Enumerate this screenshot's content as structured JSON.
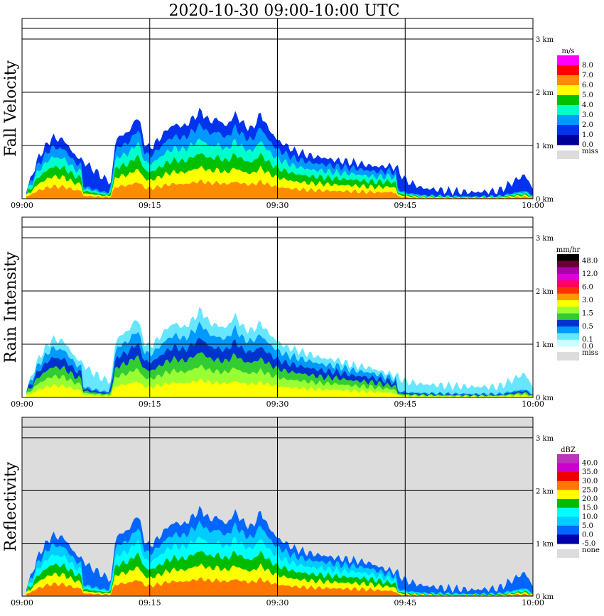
{
  "title": "2020-10-30   09:00-10:00 UTC",
  "x_ticks": [
    "09:00",
    "09:15",
    "09:30",
    "09:45",
    "10:00"
  ],
  "y_ticks": [
    "0 km",
    "1 km",
    "2 km",
    "3 km"
  ],
  "chart_data": [
    {
      "type": "heatmap",
      "title": "Fall Velocity",
      "ylabel": "Fall Velocity",
      "unit": "m/s",
      "x_range": [
        "09:00",
        "10:00"
      ],
      "y_range_km": [
        0,
        3.2
      ],
      "grid": true,
      "background": "#ffffff",
      "legend_position": "right",
      "legend": [
        {
          "label": "8.0",
          "color": "#ff00ff"
        },
        {
          "label": "7.0",
          "color": "#ff0000"
        },
        {
          "label": "6.0",
          "color": "#ff8c00"
        },
        {
          "label": "5.0",
          "color": "#ffff00"
        },
        {
          "label": "4.0",
          "color": "#00c000"
        },
        {
          "label": "3.0",
          "color": "#00ffcc"
        },
        {
          "label": "2.0",
          "color": "#0099ff"
        },
        {
          "label": "1.0",
          "color": "#0033ee"
        },
        {
          "label": "0.0",
          "color": "#000099"
        }
      ],
      "missing_label": "miss",
      "missing_color": "#dcdcdc",
      "echo_profile": {
        "minutes": [
          0.5,
          2,
          3.5,
          5,
          6,
          8,
          9.5,
          10.5,
          11,
          12,
          13,
          13.5,
          14,
          14.5,
          15,
          16,
          17,
          18,
          19,
          20,
          21,
          22,
          23,
          24,
          25,
          26,
          27,
          28,
          29,
          30,
          31,
          32,
          33,
          34,
          35,
          36,
          37,
          38,
          39,
          40,
          41,
          42,
          43,
          44,
          45,
          47,
          50,
          53,
          56,
          59,
          60
        ],
        "top_km": [
          0.15,
          0.8,
          1.15,
          1.1,
          0.85,
          0.6,
          0.4,
          0.3,
          1.15,
          1.2,
          1.35,
          1.6,
          1.3,
          1.0,
          0.95,
          1.1,
          1.3,
          1.4,
          1.35,
          1.5,
          1.65,
          1.45,
          1.5,
          1.35,
          1.6,
          1.4,
          1.3,
          1.6,
          1.3,
          1.1,
          1.0,
          0.9,
          0.85,
          0.8,
          0.78,
          0.75,
          0.72,
          0.7,
          0.68,
          0.65,
          0.62,
          0.6,
          0.62,
          0.58,
          0.35,
          0.2,
          0.15,
          0.12,
          0.15,
          0.45,
          0.2
        ]
      }
    },
    {
      "type": "heatmap",
      "title": "Rain Intensity",
      "ylabel": "Rain Intensity",
      "unit": "mm/hr",
      "x_range": [
        "09:00",
        "10:00"
      ],
      "y_range_km": [
        0,
        3.2
      ],
      "grid": true,
      "background": "#ffffff",
      "legend_position": "right",
      "legend": [
        {
          "label": "48.0",
          "color": "#000000"
        },
        {
          "label": "",
          "color": "#660033"
        },
        {
          "label": "12.0",
          "color": "#aa00aa"
        },
        {
          "label": "",
          "color": "#dd00dd"
        },
        {
          "label": "6.0",
          "color": "#ff0066"
        },
        {
          "label": "",
          "color": "#ff3300"
        },
        {
          "label": "3.0",
          "color": "#ff9900"
        },
        {
          "label": "",
          "color": "#ffff00"
        },
        {
          "label": "1.5",
          "color": "#99ff33"
        },
        {
          "label": "",
          "color": "#33cc33"
        },
        {
          "label": "0.5",
          "color": "#0033cc"
        },
        {
          "label": "",
          "color": "#0099ff"
        },
        {
          "label": "0.1",
          "color": "#66e6ff"
        },
        {
          "label": "0.0",
          "color": "#ccffff"
        }
      ],
      "missing_label": "miss",
      "missing_color": "#dcdcdc",
      "echo_profile": {
        "minutes": [
          0.5,
          2,
          3.5,
          5,
          6,
          8,
          9.5,
          10.5,
          11,
          12,
          13,
          13.5,
          14,
          14.5,
          15,
          16,
          17,
          18,
          19,
          20,
          21,
          22,
          23,
          24,
          25,
          26,
          27,
          28,
          29,
          30,
          31,
          32,
          33,
          34,
          35,
          36,
          37,
          38,
          39,
          40,
          41,
          42,
          43,
          44,
          45,
          47,
          50,
          53,
          56,
          59,
          60
        ],
        "top_km": [
          0.15,
          0.75,
          1.1,
          1.05,
          0.8,
          0.5,
          0.35,
          0.3,
          1.1,
          1.2,
          1.35,
          1.55,
          1.2,
          1.0,
          0.95,
          1.1,
          1.3,
          1.4,
          1.3,
          1.45,
          1.65,
          1.4,
          1.35,
          1.3,
          1.55,
          1.3,
          1.25,
          1.4,
          1.2,
          1.05,
          0.95,
          0.9,
          0.85,
          0.8,
          0.75,
          0.72,
          0.7,
          0.65,
          0.6,
          0.58,
          0.55,
          0.5,
          0.45,
          0.4,
          0.3,
          0.25,
          0.22,
          0.2,
          0.2,
          0.45,
          0.2
        ]
      }
    },
    {
      "type": "heatmap",
      "title": "Reflectivity",
      "ylabel": "Reflectivity",
      "unit": "dBZ",
      "x_range": [
        "09:00",
        "10:00"
      ],
      "y_range_km": [
        0,
        3.2
      ],
      "grid": true,
      "background": "#dcdcdc",
      "legend_position": "right",
      "legend": [
        {
          "label": "40.0",
          "color": "#bb33bb"
        },
        {
          "label": "35.0",
          "color": "#cc00cc"
        },
        {
          "label": "30.0",
          "color": "#ee0000"
        },
        {
          "label": "25.0",
          "color": "#ff7700"
        },
        {
          "label": "20.0",
          "color": "#ffff00"
        },
        {
          "label": "15.0",
          "color": "#00bb00"
        },
        {
          "label": "10.0",
          "color": "#00ffff"
        },
        {
          "label": "5.0",
          "color": "#00ccff"
        },
        {
          "label": "0.0",
          "color": "#0066ff"
        },
        {
          "label": "-5.0",
          "color": "#0000aa"
        }
      ],
      "missing_label": "none",
      "missing_color": "#dcdcdc",
      "echo_profile": {
        "minutes": [
          0.5,
          2,
          3.5,
          5,
          6,
          8,
          9.5,
          10.5,
          11,
          12,
          13,
          13.5,
          14,
          14.5,
          15,
          16,
          17,
          18,
          19,
          20,
          21,
          22,
          23,
          24,
          25,
          26,
          27,
          28,
          29,
          30,
          31,
          32,
          33,
          34,
          35,
          36,
          37,
          38,
          39,
          40,
          41,
          42,
          43,
          44,
          45,
          47,
          50,
          53,
          56,
          59,
          60
        ],
        "top_km": [
          0.15,
          0.8,
          1.15,
          1.1,
          0.85,
          0.55,
          0.4,
          0.3,
          1.15,
          1.2,
          1.35,
          1.6,
          1.3,
          1.0,
          0.95,
          1.1,
          1.3,
          1.4,
          1.35,
          1.5,
          1.65,
          1.45,
          1.5,
          1.35,
          1.6,
          1.4,
          1.3,
          1.6,
          1.3,
          1.1,
          1.0,
          0.9,
          0.85,
          0.8,
          0.78,
          0.75,
          0.72,
          0.7,
          0.68,
          0.65,
          0.62,
          0.55,
          0.5,
          0.45,
          0.3,
          0.2,
          0.15,
          0.12,
          0.15,
          0.45,
          0.2
        ]
      }
    }
  ]
}
